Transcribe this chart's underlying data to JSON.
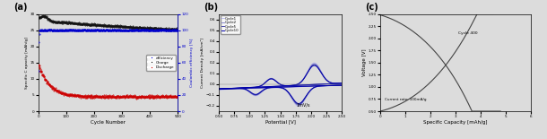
{
  "fig_width": 6.1,
  "fig_height": 1.55,
  "dpi": 100,
  "background": "#dcdcdc",
  "panel_a": {
    "label": "(a)",
    "xlabel": "Cycle Number",
    "ylabel_left": "Specific C apacity [mAh/g]",
    "ylabel_right": "Coulombic efficiency [%]",
    "xlim": [
      0,
      500
    ],
    "ylim_left": [
      0,
      30
    ],
    "ylim_right": [
      0,
      120
    ],
    "charge_color": "#111111",
    "discharge_color": "#cc0000",
    "efficiency_color": "#0000cc",
    "legend_labels": [
      "efficiency",
      "Charge",
      "Discharge"
    ]
  },
  "panel_b": {
    "label": "(b)",
    "xlabel": "Potential [V]",
    "ylabel": "Current Density [mA/cm²]",
    "xlim": [
      0.5,
      2.5
    ],
    "ylim": [
      -0.25,
      0.65
    ],
    "cycle_colors": [
      "#bbbbee",
      "#8888cc",
      "#4444aa",
      "#0000aa"
    ],
    "cycle_labels": [
      "Cycle1",
      "Cycle2",
      "Cycle5",
      "Cycle10"
    ],
    "scan_rate": "1mV/s"
  },
  "panel_c": {
    "label": "(c)",
    "xlabel": "Specific Capacity [mAh/g]",
    "ylabel": "Voltage [V]",
    "xlim": [
      0,
      6
    ],
    "ylim": [
      0.5,
      2.5
    ],
    "curve_color": "#444444",
    "annotation": "Cycle 400",
    "annotation2": "Current rate: 100mA/g"
  }
}
